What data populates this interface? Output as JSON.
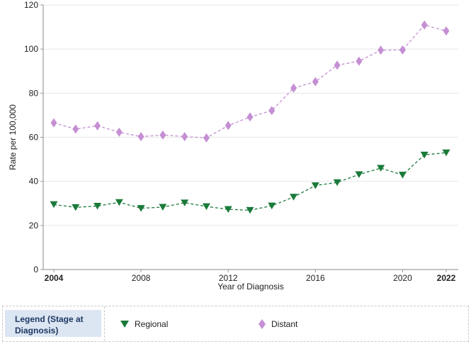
{
  "chart_data": {
    "type": "line",
    "title": "",
    "xlabel": "Year of Diagnosis",
    "ylabel": "Rate per 100,000",
    "xlim": [
      2004,
      2022
    ],
    "ylim": [
      0,
      120
    ],
    "x_ticks": [
      "2004",
      "2008",
      "2012",
      "2016",
      "2020",
      "2022"
    ],
    "x_ticks_bold": [
      "2004",
      "2022"
    ],
    "y_ticks": [
      "0",
      "20",
      "40",
      "60",
      "80",
      "100",
      "120"
    ],
    "grid": "horizontal",
    "x": [
      2004,
      2005,
      2006,
      2007,
      2008,
      2009,
      2010,
      2011,
      2012,
      2013,
      2014,
      2015,
      2016,
      2017,
      2018,
      2019,
      2020,
      2021,
      2022
    ],
    "series": [
      {
        "name": "Regional",
        "color": "#1a7a3a",
        "marker": "triangle-down",
        "line": "dashed",
        "values": [
          29.5,
          28.2,
          28.8,
          30.5,
          27.8,
          28.3,
          30.3,
          28.6,
          27.3,
          26.9,
          28.9,
          32.9,
          38.1,
          39.5,
          43.1,
          46.0,
          42.9,
          52.0,
          53.0
        ]
      },
      {
        "name": "Distant",
        "color": "#c58fd4",
        "marker": "diamond",
        "line": "dashed",
        "values": [
          66.5,
          63.7,
          65.2,
          62.3,
          60.3,
          61.0,
          60.3,
          59.7,
          65.3,
          69.2,
          72.1,
          82.3,
          85.2,
          92.7,
          94.5,
          99.5,
          99.6,
          110.9,
          108.2
        ]
      }
    ],
    "legend_position": "bottom"
  },
  "legend": {
    "title": "Legend (Stage at Diagnosis)",
    "items": [
      {
        "label": "Regional",
        "icon": "triangle-down-icon"
      },
      {
        "label": "Distant",
        "icon": "diamond-icon"
      }
    ]
  }
}
